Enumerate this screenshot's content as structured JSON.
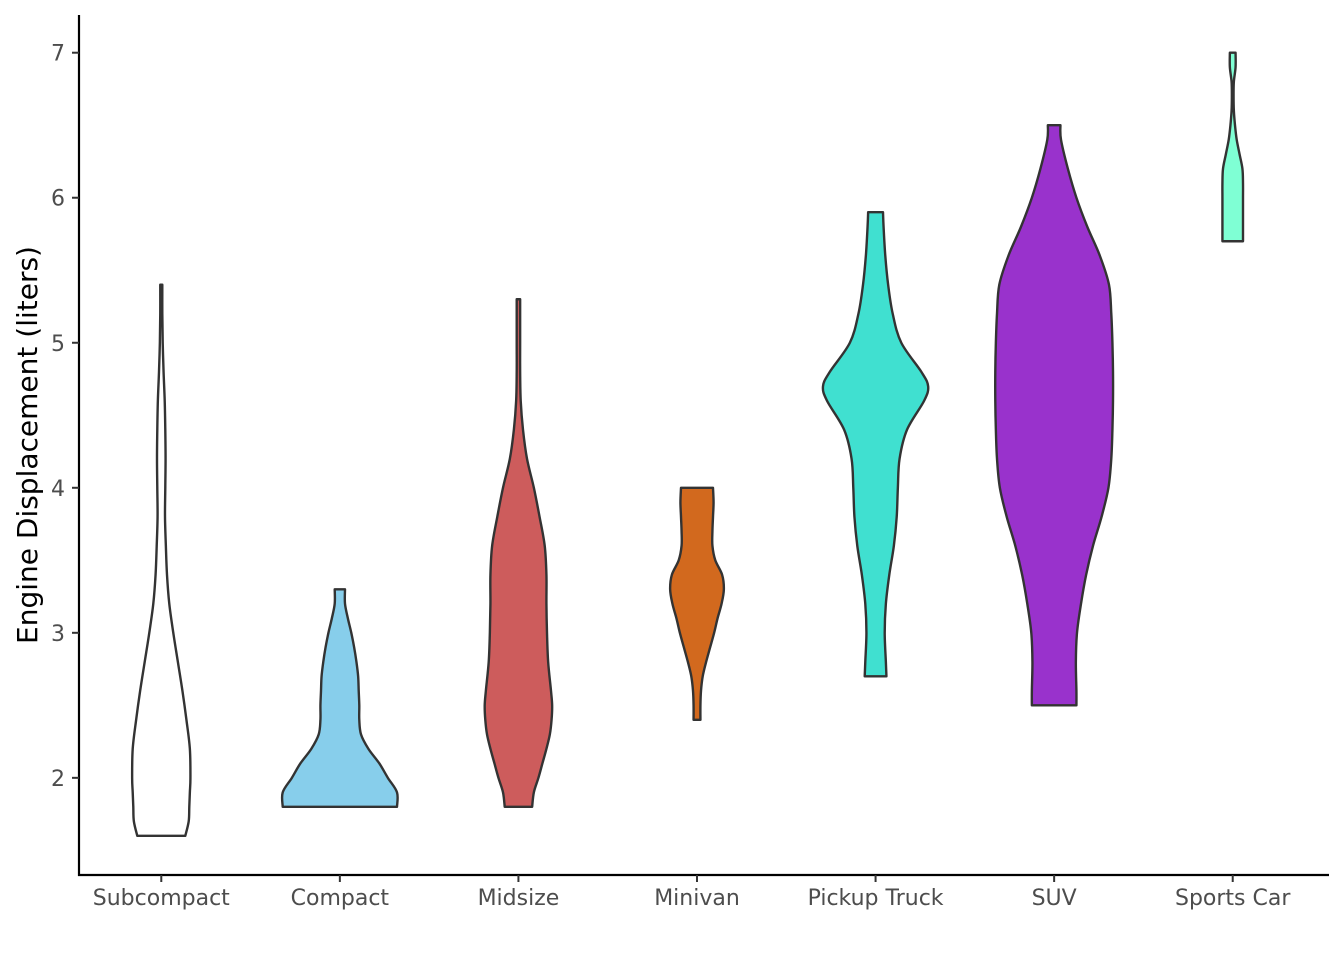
{
  "chart_data": {
    "type": "violin",
    "title": "",
    "xlabel": "",
    "ylabel": "Engine Displacement (liters)",
    "ylim": [
      1.33,
      7.26
    ],
    "yticks": [
      2,
      3,
      4,
      5,
      6,
      7
    ],
    "ytick_labels": [
      "2",
      "3",
      "4",
      "5",
      "6",
      "7"
    ],
    "grid": false,
    "legend": "none",
    "categories": [
      "Subcompact",
      "Compact",
      "Midsize",
      "Minivan",
      "Pickup Truck",
      "SUV",
      "Sports Car"
    ],
    "series": [
      {
        "category": "Subcompact",
        "fill": "#FFFFFF",
        "min": 1.6,
        "max": 5.4,
        "density_profile": [
          [
            1.6,
            0.42
          ],
          [
            1.7,
            0.48
          ],
          [
            1.8,
            0.49
          ],
          [
            1.9,
            0.5
          ],
          [
            2.0,
            0.51
          ],
          [
            2.2,
            0.5
          ],
          [
            2.4,
            0.44
          ],
          [
            2.6,
            0.37
          ],
          [
            2.8,
            0.29
          ],
          [
            3.0,
            0.21
          ],
          [
            3.2,
            0.14
          ],
          [
            3.4,
            0.1
          ],
          [
            3.6,
            0.08
          ],
          [
            3.8,
            0.065
          ],
          [
            4.0,
            0.07
          ],
          [
            4.2,
            0.075
          ],
          [
            4.4,
            0.07
          ],
          [
            4.6,
            0.06
          ],
          [
            4.8,
            0.04
          ],
          [
            5.0,
            0.025
          ],
          [
            5.2,
            0.018
          ],
          [
            5.4,
            0.018
          ]
        ]
      },
      {
        "category": "Compact",
        "fill": "#87CEEB",
        "min": 1.8,
        "max": 3.3,
        "density_profile": [
          [
            1.8,
            1.0
          ],
          [
            1.9,
            1.0
          ],
          [
            2.0,
            0.84
          ],
          [
            2.1,
            0.69
          ],
          [
            2.2,
            0.5
          ],
          [
            2.3,
            0.37
          ],
          [
            2.4,
            0.34
          ],
          [
            2.5,
            0.34
          ],
          [
            2.6,
            0.33
          ],
          [
            2.7,
            0.32
          ],
          [
            2.8,
            0.29
          ],
          [
            2.9,
            0.25
          ],
          [
            3.0,
            0.2
          ],
          [
            3.1,
            0.14
          ],
          [
            3.2,
            0.09
          ],
          [
            3.3,
            0.09
          ]
        ]
      },
      {
        "category": "Midsize",
        "fill": "#CD5C5C",
        "min": 1.8,
        "max": 5.3,
        "density_profile": [
          [
            1.8,
            0.24
          ],
          [
            1.9,
            0.27
          ],
          [
            2.0,
            0.35
          ],
          [
            2.1,
            0.42
          ],
          [
            2.2,
            0.49
          ],
          [
            2.3,
            0.55
          ],
          [
            2.4,
            0.58
          ],
          [
            2.5,
            0.59
          ],
          [
            2.6,
            0.57
          ],
          [
            2.8,
            0.52
          ],
          [
            3.0,
            0.5
          ],
          [
            3.2,
            0.49
          ],
          [
            3.4,
            0.49
          ],
          [
            3.6,
            0.46
          ],
          [
            3.8,
            0.37
          ],
          [
            4.0,
            0.27
          ],
          [
            4.2,
            0.15
          ],
          [
            4.4,
            0.08
          ],
          [
            4.6,
            0.04
          ],
          [
            4.8,
            0.03
          ],
          [
            5.0,
            0.03
          ],
          [
            5.3,
            0.03
          ]
        ]
      },
      {
        "category": "Minivan",
        "fill": "#D2691E",
        "min": 2.4,
        "max": 4.0,
        "density_profile": [
          [
            2.4,
            0.06
          ],
          [
            2.5,
            0.06
          ],
          [
            2.6,
            0.07
          ],
          [
            2.7,
            0.1
          ],
          [
            2.8,
            0.16
          ],
          [
            2.9,
            0.23
          ],
          [
            3.0,
            0.3
          ],
          [
            3.1,
            0.36
          ],
          [
            3.2,
            0.43
          ],
          [
            3.3,
            0.47
          ],
          [
            3.4,
            0.44
          ],
          [
            3.5,
            0.32
          ],
          [
            3.6,
            0.27
          ],
          [
            3.7,
            0.27
          ],
          [
            3.8,
            0.28
          ],
          [
            3.9,
            0.29
          ],
          [
            4.0,
            0.28
          ]
        ]
      },
      {
        "category": "Pickup Truck",
        "fill": "#40E0D0",
        "min": 2.7,
        "max": 5.9,
        "density_profile": [
          [
            2.7,
            0.19
          ],
          [
            2.8,
            0.18
          ],
          [
            3.0,
            0.16
          ],
          [
            3.2,
            0.18
          ],
          [
            3.4,
            0.24
          ],
          [
            3.6,
            0.32
          ],
          [
            3.8,
            0.37
          ],
          [
            4.0,
            0.39
          ],
          [
            4.2,
            0.42
          ],
          [
            4.4,
            0.55
          ],
          [
            4.6,
            0.85
          ],
          [
            4.7,
            0.92
          ],
          [
            4.8,
            0.8
          ],
          [
            5.0,
            0.45
          ],
          [
            5.2,
            0.3
          ],
          [
            5.4,
            0.22
          ],
          [
            5.6,
            0.17
          ],
          [
            5.8,
            0.14
          ],
          [
            5.9,
            0.13
          ]
        ]
      },
      {
        "category": "SUV",
        "fill": "#9932CC",
        "min": 2.5,
        "max": 6.5,
        "density_profile": [
          [
            2.5,
            0.39
          ],
          [
            2.6,
            0.39
          ],
          [
            2.8,
            0.38
          ],
          [
            3.0,
            0.4
          ],
          [
            3.2,
            0.47
          ],
          [
            3.4,
            0.56
          ],
          [
            3.6,
            0.68
          ],
          [
            3.8,
            0.83
          ],
          [
            4.0,
            0.95
          ],
          [
            4.2,
            1.0
          ],
          [
            4.4,
            1.02
          ],
          [
            4.6,
            1.03
          ],
          [
            4.8,
            1.03
          ],
          [
            5.0,
            1.02
          ],
          [
            5.2,
            1.0
          ],
          [
            5.4,
            0.96
          ],
          [
            5.6,
            0.8
          ],
          [
            5.8,
            0.58
          ],
          [
            6.0,
            0.39
          ],
          [
            6.2,
            0.24
          ],
          [
            6.4,
            0.12
          ],
          [
            6.5,
            0.11
          ]
        ]
      },
      {
        "category": "Sports Car",
        "fill": "#7FFFD4",
        "min": 5.7,
        "max": 7.0,
        "density_profile": [
          [
            5.7,
            0.18
          ],
          [
            5.8,
            0.18
          ],
          [
            5.9,
            0.18
          ],
          [
            6.0,
            0.18
          ],
          [
            6.1,
            0.18
          ],
          [
            6.2,
            0.17
          ],
          [
            6.3,
            0.12
          ],
          [
            6.4,
            0.07
          ],
          [
            6.5,
            0.04
          ],
          [
            6.6,
            0.02
          ],
          [
            6.7,
            0.015
          ],
          [
            6.8,
            0.02
          ],
          [
            6.9,
            0.05
          ],
          [
            7.0,
            0.05
          ]
        ]
      }
    ]
  }
}
